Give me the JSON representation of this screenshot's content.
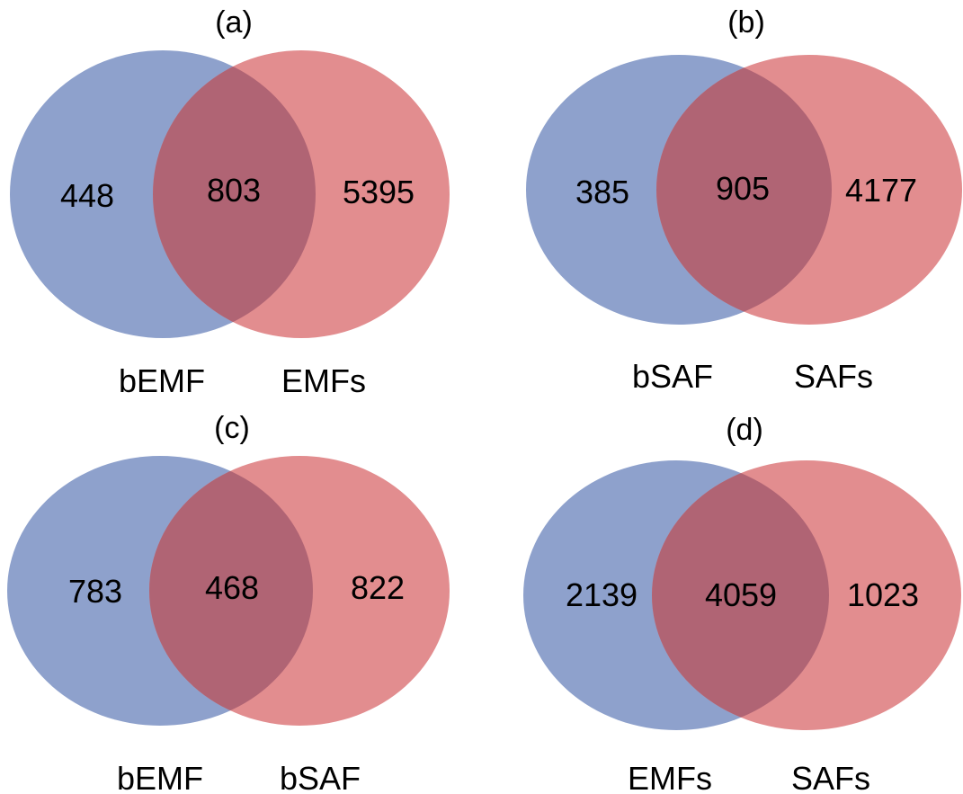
{
  "colors": {
    "left_set": "#8ea1cc",
    "right_set": "#e28d8f",
    "overlap": "#b06474"
  },
  "panels": [
    {
      "title": "(a)",
      "left_label": "bEMF",
      "right_label": "EMFs",
      "left_only": "448",
      "overlap": "803",
      "right_only": "5395"
    },
    {
      "title": "(b)",
      "left_label": "bSAF",
      "right_label": "SAFs",
      "left_only": "385",
      "overlap": "905",
      "right_only": "4177"
    },
    {
      "title": "(c)",
      "left_label": "bEMF",
      "right_label": "bSAF",
      "left_only": "783",
      "overlap": "468",
      "right_only": "822"
    },
    {
      "title": "(d)",
      "left_label": "EMFs",
      "right_label": "SAFs",
      "left_only": "2139",
      "overlap": "4059",
      "right_only": "1023"
    }
  ]
}
